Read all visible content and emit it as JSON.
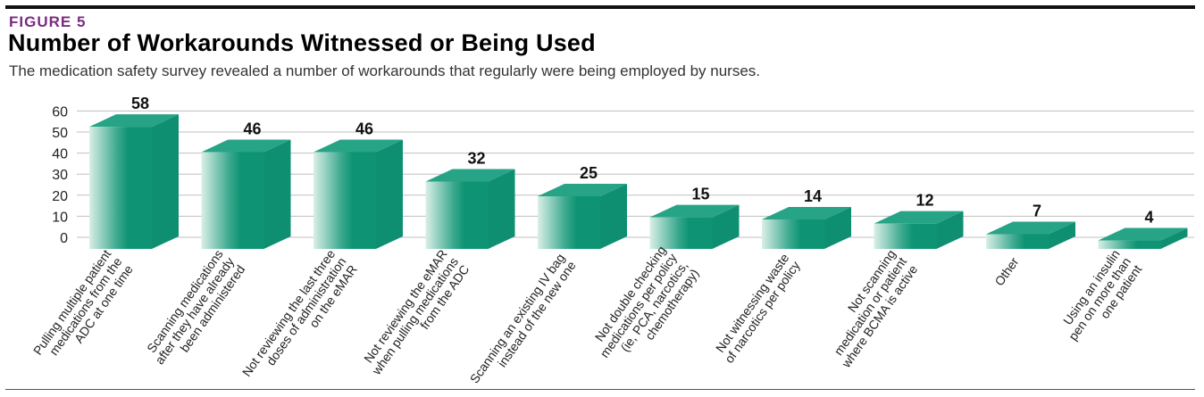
{
  "figure_label": "FIGURE 5",
  "colors": {
    "label": "#7b2b80",
    "bar_dark": "#0e9474",
    "bar_mid": "#3aa88d",
    "bar_light": "#d9efe8",
    "top_face": "#27a386",
    "side_face": "#0f8f72",
    "grid": "#bfbfbf"
  },
  "chart_data": {
    "type": "bar",
    "title": "Number of Workarounds Witnessed or Being Used",
    "subtitle": "The medication safety survey revealed a number of workarounds that regularly were being employed by nurses.",
    "xlabel": "",
    "ylabel": "",
    "ylim": [
      0,
      60
    ],
    "yticks": [
      0,
      10,
      20,
      30,
      40,
      50,
      60
    ],
    "grid": true,
    "style": "3d",
    "categories": [
      [
        "Pulling multiple patient",
        "medications from the",
        "ADC at one time"
      ],
      [
        "Scanning medications",
        "after they have already",
        "been administered"
      ],
      [
        "Not reviewing the last three",
        "doses of administration",
        "on the eMAR"
      ],
      [
        "Not reviewing the eMAR",
        "when pulling medications",
        "from the ADC"
      ],
      [
        "Scanning an existing IV bag",
        "instead of the new one"
      ],
      [
        "Not double checking",
        "medications per policy",
        "(ie, PCA, narcotics,",
        "chemotherapy)"
      ],
      [
        "Not witnessing waste",
        "of narcotics per policy"
      ],
      [
        "Not scanning",
        "medication or patient",
        "where BCMA is active"
      ],
      [
        "Other"
      ],
      [
        "Using an insulin",
        "pen on more than",
        "one patient"
      ]
    ],
    "values": [
      58,
      46,
      46,
      32,
      25,
      15,
      14,
      12,
      7,
      4
    ]
  }
}
